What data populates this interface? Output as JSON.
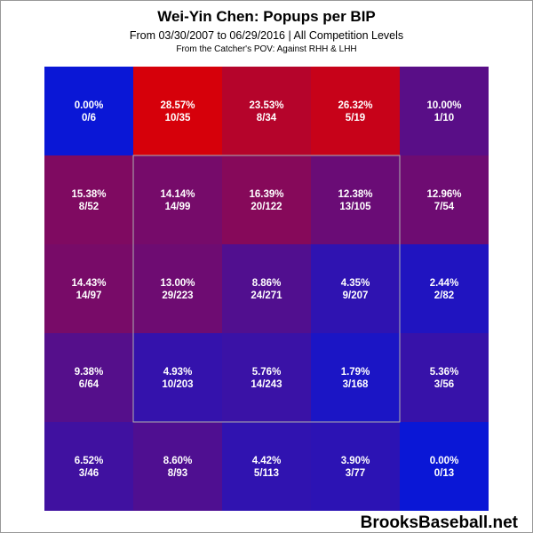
{
  "header": {
    "title": "Wei-Yin Chen: Popups per BIP",
    "subtitle": "From 03/30/2007 to 06/29/2016 | All Competition Levels",
    "pov": "From the Catcher's POV:  Against RHH & LHH"
  },
  "footer": {
    "brand": "BrooksBaseball.net"
  },
  "colors": {
    "low": "#0a17d6",
    "high": "#d6000a",
    "strike_zone": "#b0b0b0"
  },
  "chart_data": {
    "type": "heatmap",
    "title": "Wei-Yin Chen: Popups per BIP",
    "rows": 5,
    "cols": 5,
    "strike_zone": {
      "rows": [
        1,
        3
      ],
      "cols": [
        1,
        3
      ]
    },
    "cells": [
      [
        {
          "pct": "0.00%",
          "frac": "0/6",
          "value": 0.0
        },
        {
          "pct": "28.57%",
          "frac": "10/35",
          "value": 28.57
        },
        {
          "pct": "23.53%",
          "frac": "8/34",
          "value": 23.53
        },
        {
          "pct": "26.32%",
          "frac": "5/19",
          "value": 26.32
        },
        {
          "pct": "10.00%",
          "frac": "1/10",
          "value": 10.0
        }
      ],
      [
        {
          "pct": "15.38%",
          "frac": "8/52",
          "value": 15.38
        },
        {
          "pct": "14.14%",
          "frac": "14/99",
          "value": 14.14
        },
        {
          "pct": "16.39%",
          "frac": "20/122",
          "value": 16.39
        },
        {
          "pct": "12.38%",
          "frac": "13/105",
          "value": 12.38
        },
        {
          "pct": "12.96%",
          "frac": "7/54",
          "value": 12.96
        }
      ],
      [
        {
          "pct": "14.43%",
          "frac": "14/97",
          "value": 14.43
        },
        {
          "pct": "13.00%",
          "frac": "29/223",
          "value": 13.0
        },
        {
          "pct": "8.86%",
          "frac": "24/271",
          "value": 8.86
        },
        {
          "pct": "4.35%",
          "frac": "9/207",
          "value": 4.35
        },
        {
          "pct": "2.44%",
          "frac": "2/82",
          "value": 2.44
        }
      ],
      [
        {
          "pct": "9.38%",
          "frac": "6/64",
          "value": 9.38
        },
        {
          "pct": "4.93%",
          "frac": "10/203",
          "value": 4.93
        },
        {
          "pct": "5.76%",
          "frac": "14/243",
          "value": 5.76
        },
        {
          "pct": "1.79%",
          "frac": "3/168",
          "value": 1.79
        },
        {
          "pct": "5.36%",
          "frac": "3/56",
          "value": 5.36
        }
      ],
      [
        {
          "pct": "6.52%",
          "frac": "3/46",
          "value": 6.52
        },
        {
          "pct": "8.60%",
          "frac": "8/93",
          "value": 8.6
        },
        {
          "pct": "4.42%",
          "frac": "5/113",
          "value": 4.42
        },
        {
          "pct": "3.90%",
          "frac": "3/77",
          "value": 3.9
        },
        {
          "pct": "0.00%",
          "frac": "0/13",
          "value": 0.0
        }
      ]
    ]
  }
}
